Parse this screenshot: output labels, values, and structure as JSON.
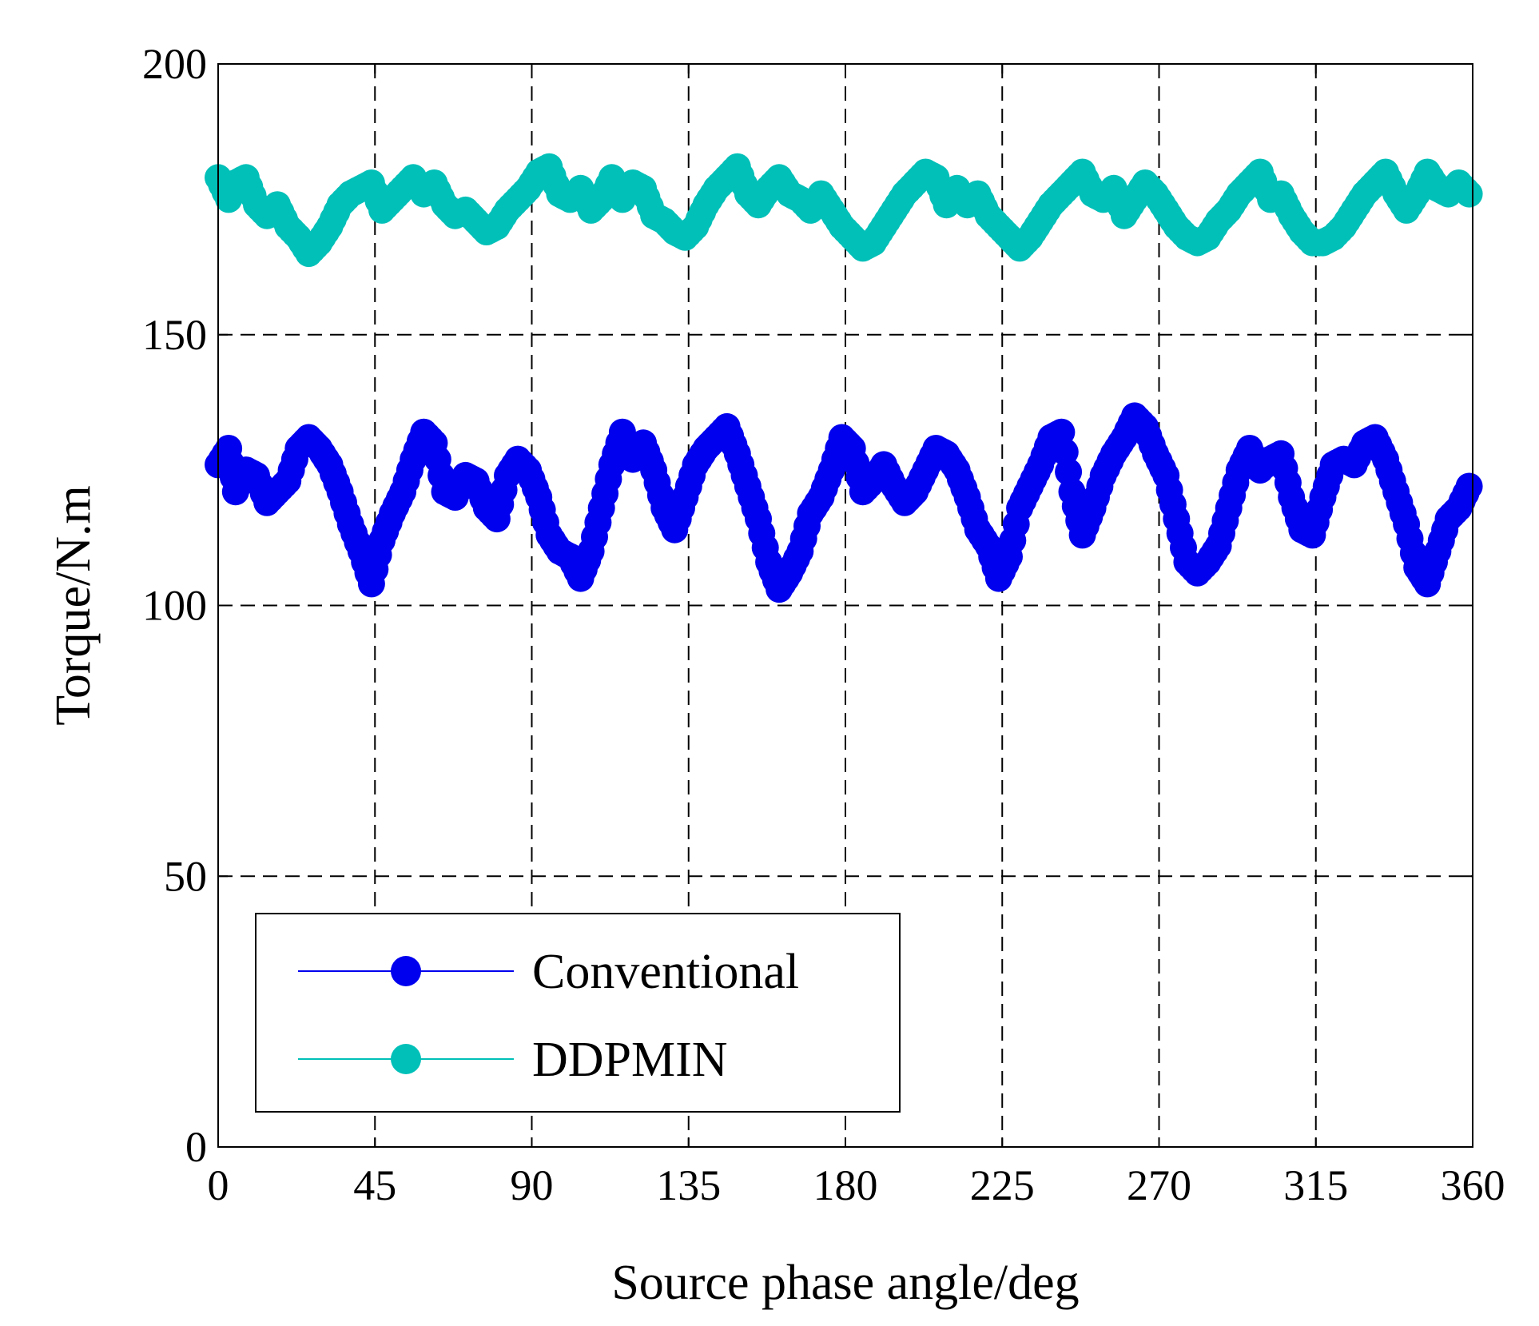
{
  "chart_data": {
    "type": "line",
    "title": "",
    "xlabel": "Source phase angle/deg",
    "ylabel": "Torque/N.m",
    "xlim": [
      0,
      360
    ],
    "ylim": [
      0,
      200
    ],
    "xticks": [
      "0",
      "45",
      "90",
      "135",
      "180",
      "225",
      "270",
      "315",
      "360"
    ],
    "yticks": [
      "0",
      "50",
      "100",
      "150",
      "200"
    ],
    "grid": true,
    "grid_style": "dashed",
    "legend_position": "bottom-left",
    "series": [
      {
        "name": "Conventional",
        "color": "#0000ee",
        "marker": "circle",
        "x": [
          0,
          3,
          5,
          8,
          11,
          14,
          17,
          20,
          23,
          26,
          29,
          32,
          35,
          38,
          41,
          44,
          47,
          50,
          53,
          56,
          59,
          62,
          65,
          68,
          71,
          74,
          77,
          80,
          83,
          86,
          89,
          92,
          95,
          98,
          101,
          104,
          107,
          110,
          113,
          116,
          119,
          122,
          125,
          128,
          131,
          134,
          137,
          140,
          143,
          146,
          149,
          152,
          155,
          158,
          161,
          164,
          167,
          170,
          173,
          176,
          179,
          182,
          185,
          188,
          191,
          194,
          197,
          200,
          203,
          206,
          209,
          212,
          215,
          218,
          221,
          224,
          227,
          230,
          233,
          236,
          239,
          242,
          245,
          248,
          251,
          254,
          257,
          260,
          263,
          266,
          269,
          272,
          275,
          278,
          281,
          284,
          287,
          290,
          293,
          296,
          299,
          302,
          305,
          308,
          311,
          314,
          317,
          320,
          323,
          326,
          329,
          332,
          335,
          338,
          341,
          344,
          347,
          350,
          353,
          356,
          359
        ],
        "values": [
          126,
          129,
          121,
          125,
          124,
          119,
          121,
          123,
          129,
          131,
          129,
          126,
          121,
          115,
          110,
          104,
          112,
          117,
          121,
          127,
          132,
          130,
          121,
          120,
          124,
          123,
          118,
          116,
          124,
          127,
          125,
          120,
          113,
          110,
          109,
          105,
          110,
          118,
          126,
          132,
          127,
          130,
          125,
          118,
          114,
          120,
          126,
          129,
          131,
          133,
          128,
          122,
          116,
          108,
          103,
          106,
          110,
          117,
          120,
          125,
          131,
          129,
          121,
          123,
          126,
          122,
          119,
          121,
          125,
          129,
          128,
          125,
          120,
          114,
          111,
          105,
          109,
          118,
          122,
          126,
          131,
          132,
          121,
          113,
          118,
          124,
          128,
          131,
          135,
          133,
          128,
          124,
          116,
          108,
          106,
          108,
          111,
          118,
          125,
          129,
          125,
          127,
          128,
          120,
          114,
          113,
          120,
          126,
          127,
          126,
          130,
          131,
          127,
          121,
          115,
          107,
          104,
          110,
          116,
          118,
          122
        ]
      },
      {
        "name": "DDPMIN",
        "color": "#00c0b8",
        "marker": "circle",
        "x": [
          0,
          3,
          5,
          8,
          11,
          14,
          17,
          20,
          23,
          26,
          29,
          32,
          35,
          38,
          41,
          44,
          47,
          50,
          53,
          56,
          59,
          62,
          65,
          68,
          71,
          74,
          77,
          80,
          83,
          86,
          89,
          92,
          95,
          98,
          101,
          104,
          107,
          110,
          113,
          116,
          119,
          122,
          125,
          128,
          131,
          134,
          137,
          140,
          143,
          146,
          149,
          152,
          155,
          158,
          161,
          164,
          167,
          170,
          173,
          176,
          179,
          182,
          185,
          188,
          191,
          194,
          197,
          200,
          203,
          206,
          209,
          212,
          215,
          218,
          221,
          224,
          227,
          230,
          233,
          236,
          239,
          242,
          245,
          248,
          251,
          254,
          257,
          260,
          263,
          266,
          269,
          272,
          275,
          278,
          281,
          284,
          287,
          290,
          293,
          296,
          299,
          302,
          305,
          308,
          311,
          314,
          317,
          320,
          323,
          326,
          329,
          332,
          335,
          338,
          341,
          344,
          347,
          350,
          353,
          356,
          359
        ],
        "values": [
          179,
          175,
          178,
          179,
          174,
          172,
          174,
          170,
          168,
          165,
          167,
          170,
          174,
          176,
          177,
          178,
          173,
          175,
          177,
          179,
          176,
          178,
          174,
          172,
          173,
          171,
          169,
          170,
          173,
          175,
          177,
          180,
          181,
          176,
          175,
          177,
          173,
          175,
          179,
          175,
          178,
          177,
          172,
          171,
          169,
          168,
          170,
          174,
          177,
          179,
          181,
          176,
          174,
          177,
          179,
          176,
          175,
          173,
          176,
          173,
          170,
          168,
          166,
          167,
          170,
          173,
          176,
          178,
          180,
          179,
          174,
          177,
          174,
          176,
          172,
          170,
          168,
          166,
          168,
          171,
          174,
          176,
          178,
          180,
          176,
          175,
          177,
          172,
          175,
          178,
          176,
          173,
          170,
          168,
          167,
          168,
          171,
          173,
          176,
          178,
          180,
          175,
          176,
          172,
          169,
          167,
          167,
          168,
          170,
          173,
          176,
          178,
          180,
          176,
          173,
          176,
          180,
          177,
          176,
          178,
          176
        ]
      }
    ]
  }
}
